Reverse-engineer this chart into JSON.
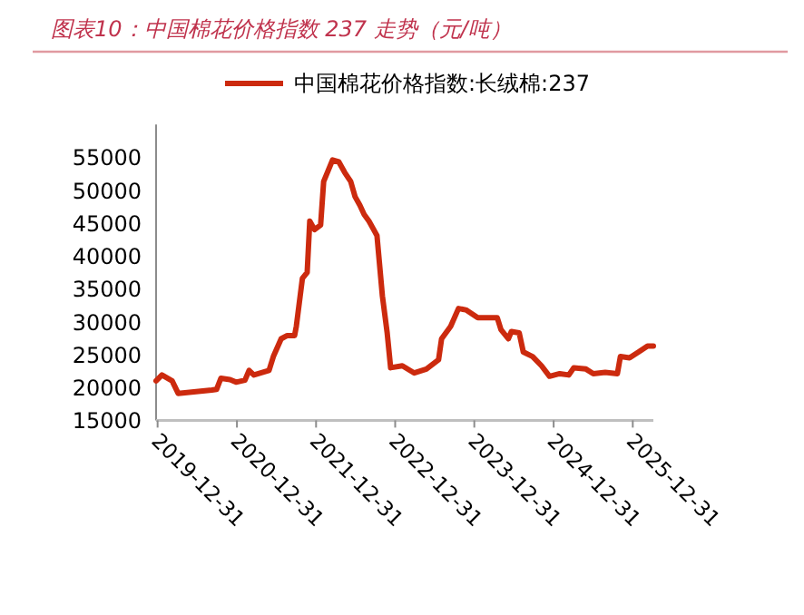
{
  "chart_data": {
    "type": "line",
    "title": "图表10：中国棉花价格指数 237 走势（元/吨）",
    "x": [
      "2019-12-24",
      "2020-01-20",
      "2020-03-07",
      "2020-04-04",
      "2020-09-06",
      "2020-09-28",
      "2020-10-18",
      "2020-11-29",
      "2020-12-27",
      "2021-02-06",
      "2021-02-25",
      "2021-03-19",
      "2021-05-28",
      "2021-06-17",
      "2021-07-23",
      "2021-08-20",
      "2021-09-23",
      "2021-10-01",
      "2021-10-29",
      "2021-11-20",
      "2021-12-02",
      "2021-12-24",
      "2022-01-21",
      "2022-02-04",
      "2022-03-17",
      "2022-04-15",
      "2022-05-12",
      "2022-06-09",
      "2022-06-29",
      "2022-07-21",
      "2022-08-10",
      "2022-09-01",
      "2022-10-08",
      "2022-11-02",
      "2022-11-24",
      "2022-12-10",
      "2023-02-02",
      "2023-03-29",
      "2023-05-24",
      "2023-07-19",
      "2023-08-02",
      "2023-09-13",
      "2023-10-19",
      "2023-11-22",
      "2024-01-16",
      "2024-04-15",
      "2024-05-02",
      "2024-06-05",
      "2024-06-19",
      "2024-07-25",
      "2024-08-13",
      "2024-09-25",
      "2024-11-05",
      "2024-12-12",
      "2025-01-28",
      "2025-03-11",
      "2025-04-03",
      "2025-05-29",
      "2025-07-02",
      "2025-08-26",
      "2025-10-21",
      "2025-11-04",
      "2025-12-16",
      "2026-01-27",
      "2026-03-09",
      "2026-04-05"
    ],
    "series": [
      {
        "name": "中国棉花价格指数:长绒棉:237",
        "color": "#cc2a0e",
        "values": [
          21000,
          21900,
          21000,
          19100,
          19600,
          19700,
          21400,
          21200,
          20800,
          21100,
          22600,
          21900,
          22600,
          24700,
          27400,
          27900,
          27900,
          29300,
          36600,
          37500,
          45300,
          44000,
          44700,
          51300,
          54600,
          54300,
          52700,
          51300,
          49000,
          47700,
          46300,
          45300,
          43100,
          33900,
          28300,
          23000,
          23300,
          22200,
          22800,
          24200,
          27400,
          29300,
          32000,
          31800,
          30600,
          30600,
          28800,
          27400,
          28500,
          28300,
          25400,
          24700,
          23300,
          21700,
          22100,
          21900,
          23000,
          22800,
          22100,
          22300,
          22100,
          24700,
          24500,
          25400,
          26300,
          26300
        ]
      }
    ],
    "xlim": [
      "2019-12-24",
      "2026-04-05"
    ],
    "xticks": [
      "2019-12-31",
      "2020-12-31",
      "2021-12-31",
      "2022-12-31",
      "2023-12-31",
      "2024-12-31",
      "2025-12-31"
    ],
    "ylim": [
      15000,
      60000
    ],
    "yticks": [
      15000,
      20000,
      25000,
      30000,
      35000,
      40000,
      45000,
      50000,
      55000
    ],
    "legend": "top"
  }
}
